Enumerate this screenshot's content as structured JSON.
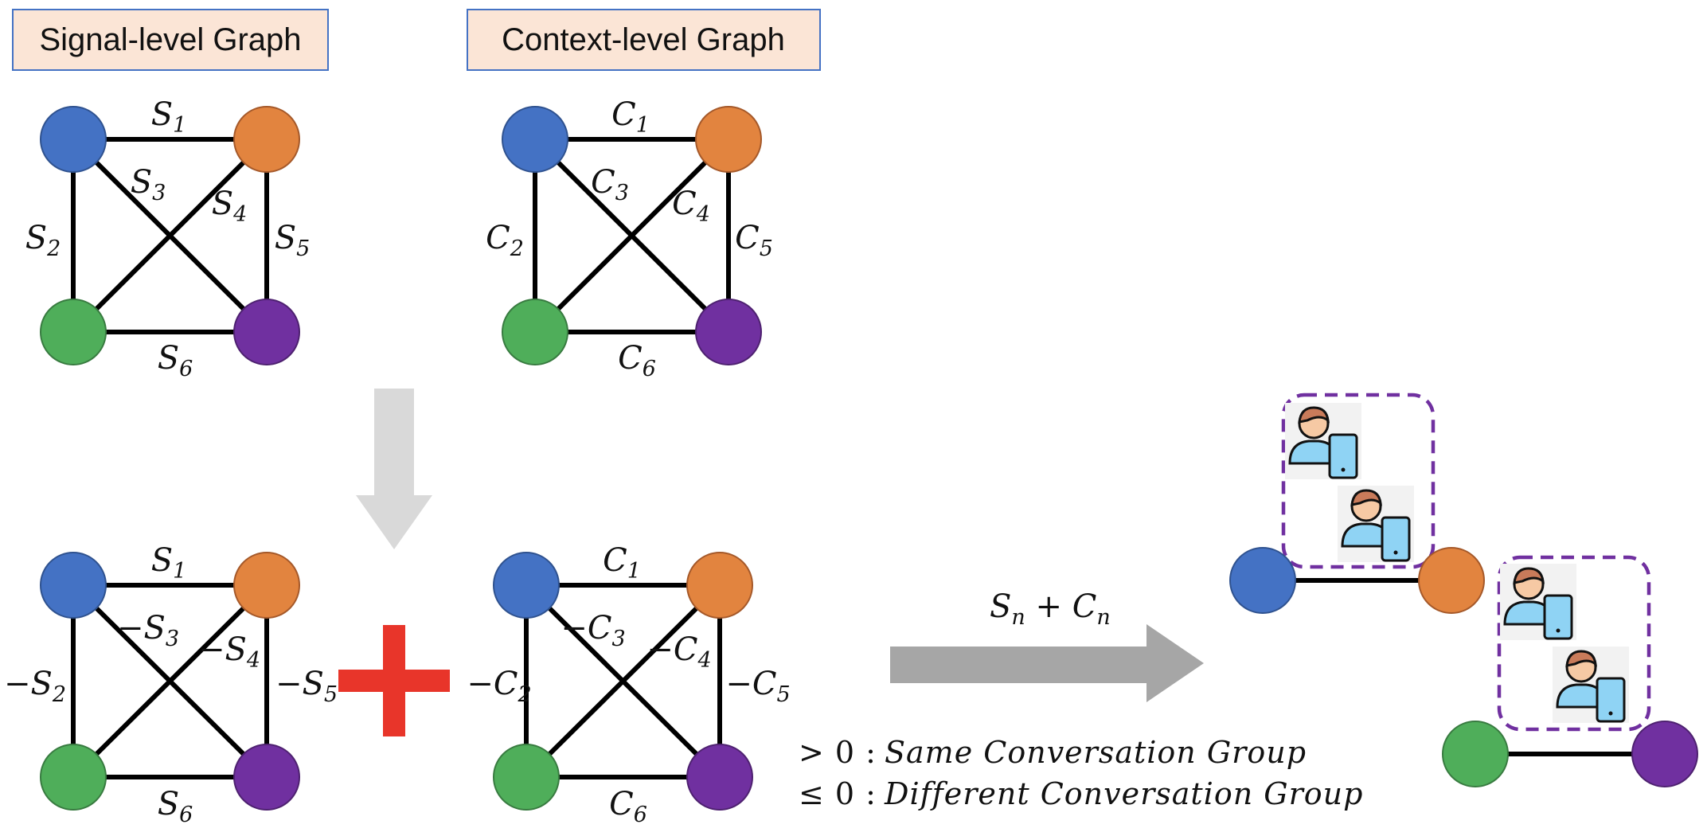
{
  "titles": {
    "signal": "Signal-level Graph",
    "context": "Context-level Graph"
  },
  "node_colors": {
    "blue": "#4472c4",
    "orange": "#e2843f",
    "green": "#4fae5a",
    "purple": "#7030a0"
  },
  "signal_graph": {
    "edges": [
      {
        "name": "s1",
        "sign": "",
        "base": "S",
        "sub": "1"
      },
      {
        "name": "s2",
        "sign": "",
        "base": "S",
        "sub": "2"
      },
      {
        "name": "s3",
        "sign": "",
        "base": "S",
        "sub": "3"
      },
      {
        "name": "s4",
        "sign": "",
        "base": "S",
        "sub": "4"
      },
      {
        "name": "s5",
        "sign": "",
        "base": "S",
        "sub": "5"
      },
      {
        "name": "s6",
        "sign": "",
        "base": "S",
        "sub": "6"
      }
    ]
  },
  "context_graph": {
    "edges": [
      {
        "name": "c1",
        "sign": "",
        "base": "C",
        "sub": "1"
      },
      {
        "name": "c2",
        "sign": "",
        "base": "C",
        "sub": "2"
      },
      {
        "name": "c3",
        "sign": "",
        "base": "C",
        "sub": "3"
      },
      {
        "name": "c4",
        "sign": "",
        "base": "C",
        "sub": "4"
      },
      {
        "name": "c5",
        "sign": "",
        "base": "C",
        "sub": "5"
      },
      {
        "name": "c6",
        "sign": "",
        "base": "C",
        "sub": "6"
      }
    ]
  },
  "signal_graph_signed": {
    "edges": [
      {
        "name": "s1",
        "sign": "",
        "base": "S",
        "sub": "1"
      },
      {
        "name": "s2",
        "sign": "−",
        "base": "S",
        "sub": "2"
      },
      {
        "name": "s3",
        "sign": "−",
        "base": "S",
        "sub": "3"
      },
      {
        "name": "s4",
        "sign": "−",
        "base": "S",
        "sub": "4"
      },
      {
        "name": "s5",
        "sign": "−",
        "base": "S",
        "sub": "5"
      },
      {
        "name": "s6",
        "sign": "",
        "base": "S",
        "sub": "6"
      }
    ]
  },
  "context_graph_signed": {
    "edges": [
      {
        "name": "c1",
        "sign": "",
        "base": "C",
        "sub": "1"
      },
      {
        "name": "c2",
        "sign": "−",
        "base": "C",
        "sub": "2"
      },
      {
        "name": "c3",
        "sign": "−",
        "base": "C",
        "sub": "3"
      },
      {
        "name": "c4",
        "sign": "−",
        "base": "C",
        "sub": "4"
      },
      {
        "name": "c5",
        "sign": "−",
        "base": "C",
        "sub": "5"
      },
      {
        "name": "c6",
        "sign": "",
        "base": "C",
        "sub": "6"
      }
    ]
  },
  "combine_symbol_color": "#e8352a",
  "arrow_colors": {
    "down": "#d9d9d9",
    "right": "#a6a6a6"
  },
  "sum_label": {
    "s": "S",
    "s_sub": "n",
    "plus": " + ",
    "c": "C",
    "c_sub": "n"
  },
  "legend": {
    "same": {
      "op": "> 0 :",
      "text": "Same Conversation Group"
    },
    "diff": {
      "op": "≤ 0 :",
      "text": "Different Conversation Group"
    }
  },
  "group_border_color": "#7030a0"
}
